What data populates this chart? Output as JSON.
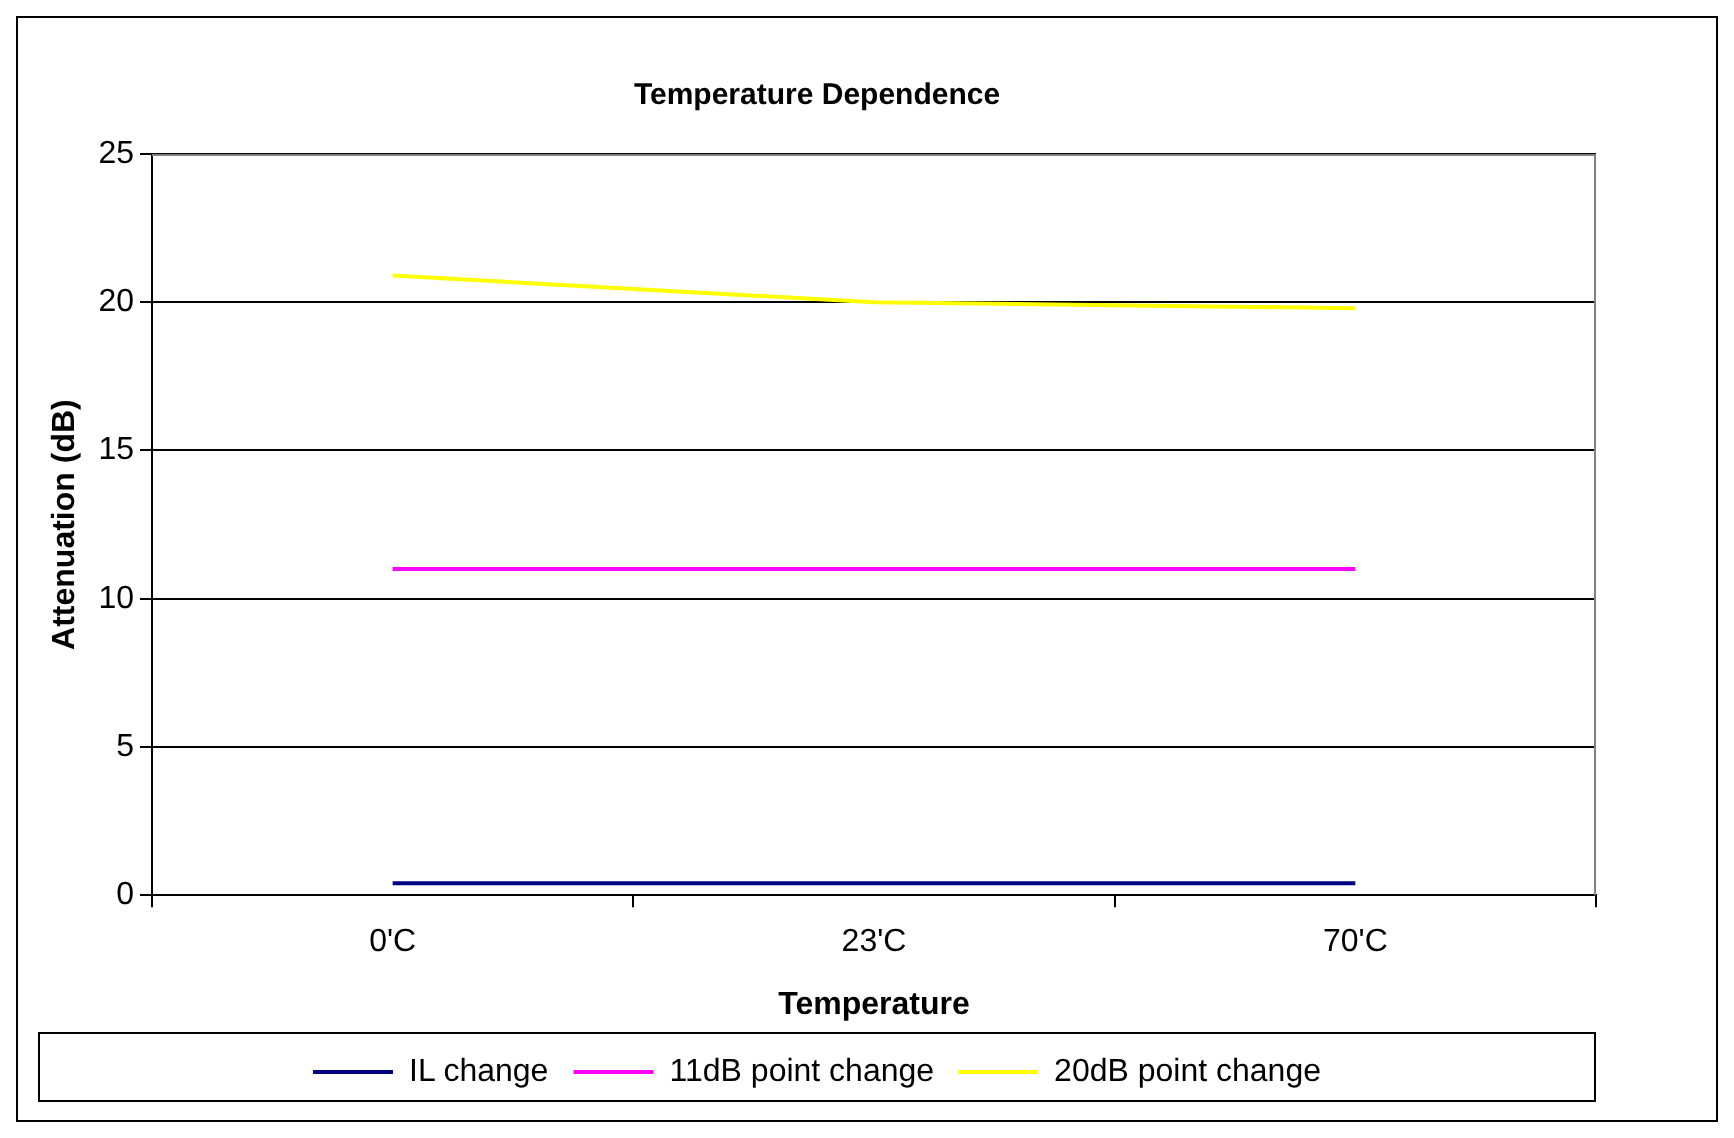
{
  "chart_data": {
    "type": "line",
    "title": "Temperature Dependence",
    "xlabel": "Temperature",
    "ylabel": "Attenuation (dB)",
    "categories": [
      "0'C",
      "23'C",
      "70'C"
    ],
    "series": [
      {
        "name": "IL change",
        "color": "#000080",
        "values": [
          0.4,
          0.4,
          0.4
        ]
      },
      {
        "name": "11dB point change",
        "color": "#ff00ff",
        "values": [
          11.0,
          11.0,
          11.0
        ]
      },
      {
        "name": "20dB point change",
        "color": "#ffff00",
        "values": [
          20.9,
          20.0,
          19.8
        ]
      }
    ],
    "ylim": [
      0,
      25
    ],
    "yticks": [
      0,
      5,
      10,
      15,
      20,
      25
    ],
    "grid": "y",
    "legend": "bottom",
    "marker": "none",
    "line_style": "solid"
  }
}
